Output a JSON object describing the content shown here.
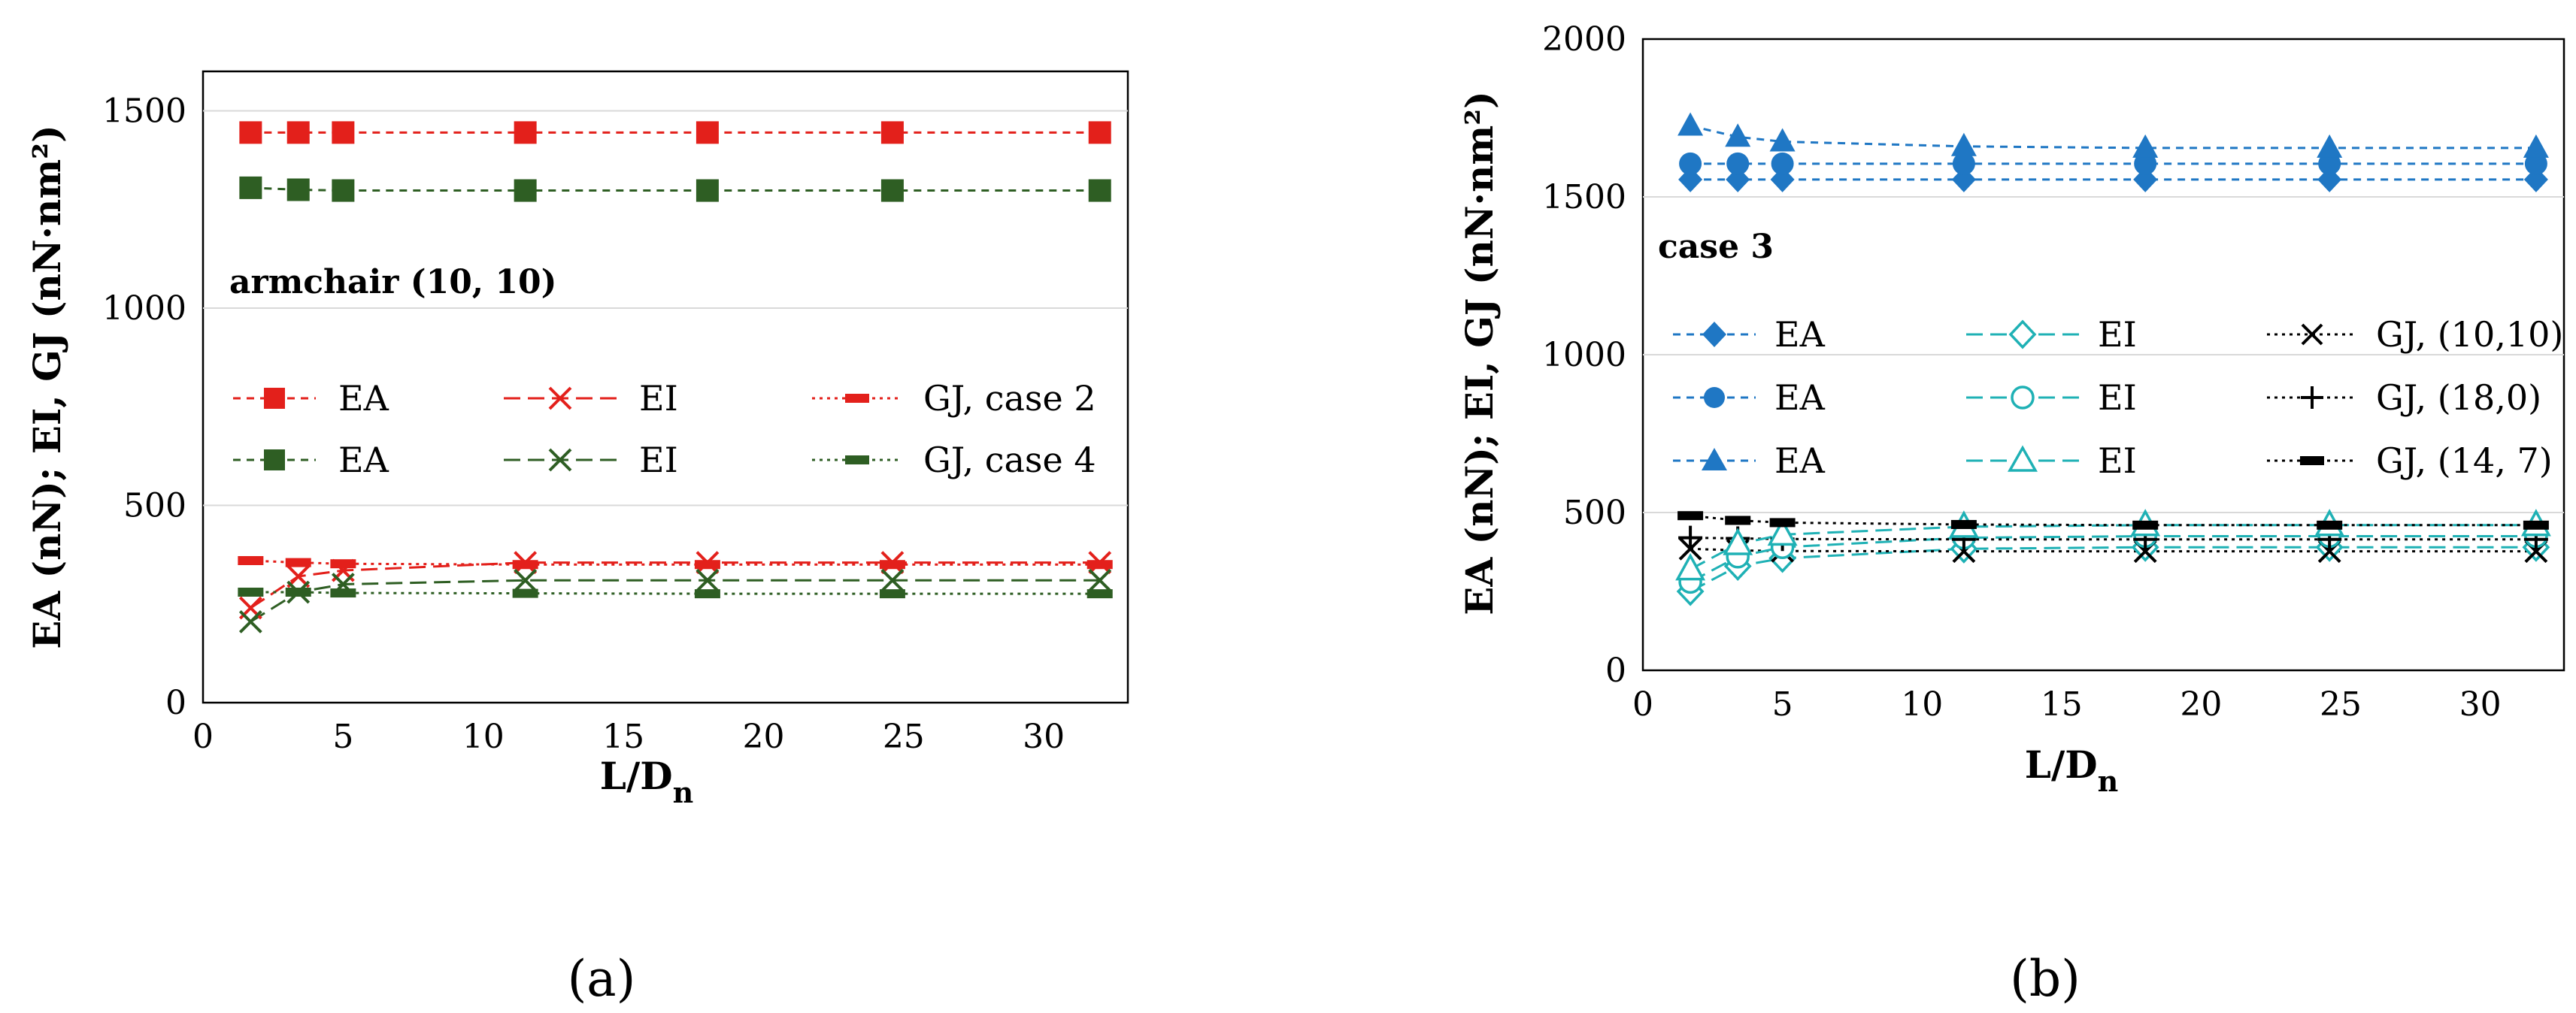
{
  "chart_data": [
    {
      "type": "line",
      "panel": "a",
      "panel_label": "(a)",
      "annotation": "armchair (10, 10)",
      "xlabel": "L/D",
      "xlabel_sub": "n",
      "ylabel": "EA (nN); EI, GJ (nN·nm²)",
      "xlim": [
        0,
        33
      ],
      "ylim": [
        0,
        1600
      ],
      "xticks": [
        0,
        5,
        10,
        15,
        20,
        25,
        30
      ],
      "yticks": [
        0,
        500,
        1000,
        1500
      ],
      "x": [
        1.7,
        3.4,
        5,
        11.5,
        18,
        24.6,
        32
      ],
      "legend_position": "center",
      "series": [
        {
          "name": "EA",
          "color": "#e3201b",
          "marker": "square-filled",
          "line": "dashed",
          "values": [
            1445,
            1445,
            1445,
            1445,
            1445,
            1445,
            1445
          ]
        },
        {
          "name": "EI",
          "color": "#e3201b",
          "marker": "x",
          "line": "long-dashed",
          "values": [
            240,
            320,
            335,
            355,
            355,
            355,
            355
          ]
        },
        {
          "name": "GJ, case 2",
          "color": "#e3201b",
          "marker": "dash",
          "line": "dotted",
          "values": [
            360,
            355,
            352,
            350,
            350,
            350,
            350
          ]
        },
        {
          "name": "EA",
          "color": "#2e5e23",
          "marker": "square-filled",
          "line": "dashed",
          "values": [
            1305,
            1300,
            1298,
            1298,
            1298,
            1298,
            1298
          ]
        },
        {
          "name": "EI",
          "color": "#2e5e23",
          "marker": "x",
          "line": "long-dashed",
          "values": [
            205,
            280,
            300,
            310,
            310,
            310,
            310
          ]
        },
        {
          "name": "GJ, case 4",
          "color": "#2e5e23",
          "marker": "dash",
          "line": "dotted",
          "values": [
            280,
            280,
            278,
            277,
            276,
            276,
            276
          ]
        }
      ]
    },
    {
      "type": "line",
      "panel": "b",
      "panel_label": "(b)",
      "annotation": "case 3",
      "xlabel": "L/D",
      "xlabel_sub": "n",
      "ylabel": "EA (nN); EI, GJ (nN·nm²)",
      "xlim": [
        0,
        33
      ],
      "ylim": [
        0,
        2000
      ],
      "xticks": [
        0,
        5,
        10,
        15,
        20,
        25,
        30
      ],
      "yticks": [
        0,
        500,
        1000,
        1500,
        2000
      ],
      "x": [
        1.7,
        3.4,
        5,
        11.5,
        18,
        24.6,
        32
      ],
      "legend_position": "center",
      "series": [
        {
          "name": "EA",
          "color": "#1f77c4",
          "marker": "diamond-filled",
          "line": "dashed",
          "values": [
            1555,
            1555,
            1555,
            1555,
            1555,
            1555,
            1555
          ]
        },
        {
          "name": "EI",
          "color": "#1fb1b5",
          "marker": "diamond-open",
          "line": "long-dashed",
          "values": [
            250,
            330,
            355,
            385,
            390,
            390,
            390
          ]
        },
        {
          "name": "GJ, (10,10)",
          "color": "#000000",
          "marker": "x",
          "line": "dotted",
          "values": [
            385,
            380,
            378,
            377,
            377,
            377,
            377
          ]
        },
        {
          "name": "EA",
          "color": "#1f77c4",
          "marker": "circle-filled",
          "line": "dashed",
          "values": [
            1605,
            1605,
            1605,
            1605,
            1605,
            1605,
            1605
          ]
        },
        {
          "name": "EI",
          "color": "#1fb1b5",
          "marker": "circle-open",
          "line": "long-dashed",
          "values": [
            280,
            360,
            390,
            420,
            425,
            425,
            425
          ]
        },
        {
          "name": "GJ, (18,0)",
          "color": "#000000",
          "marker": "plus",
          "line": "dotted",
          "values": [
            420,
            418,
            416,
            415,
            415,
            415,
            415
          ]
        },
        {
          "name": "EA",
          "color": "#1f77c4",
          "marker": "triangle-filled",
          "line": "dashed",
          "values": [
            1725,
            1690,
            1675,
            1660,
            1655,
            1655,
            1655
          ]
        },
        {
          "name": "EI",
          "color": "#1fb1b5",
          "marker": "triangle-open",
          "line": "long-dashed",
          "values": [
            320,
            400,
            430,
            455,
            460,
            460,
            460
          ]
        },
        {
          "name": "GJ, (14, 7)",
          "color": "#000000",
          "marker": "dash",
          "line": "dotted",
          "values": [
            490,
            475,
            468,
            462,
            460,
            460,
            460
          ]
        }
      ]
    }
  ]
}
